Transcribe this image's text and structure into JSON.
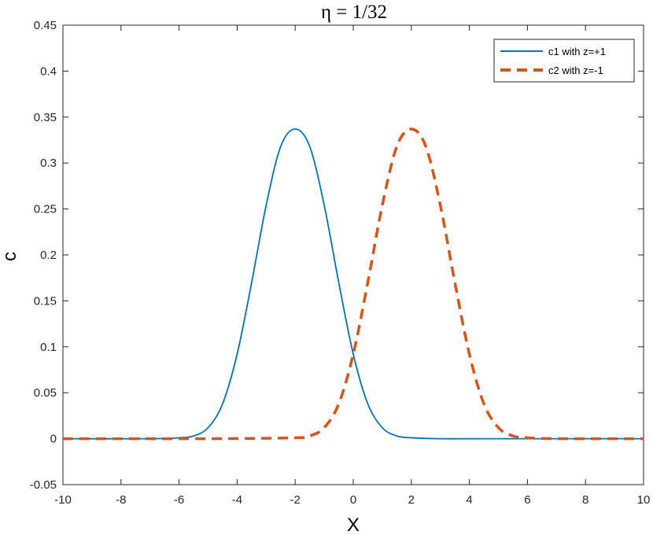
{
  "chart_data": {
    "type": "line",
    "title": "η = 1/32",
    "xlabel": "X",
    "ylabel": "c",
    "xlim": [
      -10,
      10
    ],
    "ylim": [
      -0.05,
      0.45
    ],
    "xticks": [
      -10,
      -8,
      -6,
      -4,
      -2,
      0,
      2,
      4,
      6,
      8,
      10
    ],
    "xtick_labels": [
      "-10",
      "-8",
      "-6",
      "-4",
      "-2",
      "0",
      "2",
      "4",
      "6",
      "8",
      "10"
    ],
    "yticks": [
      -0.05,
      0,
      0.05,
      0.1,
      0.15,
      0.2,
      0.25,
      0.3,
      0.35,
      0.4,
      0.45
    ],
    "ytick_labels": [
      "-0.05",
      "0",
      "0.05",
      "0.1",
      "0.15",
      "0.2",
      "0.25",
      "0.3",
      "0.35",
      "0.4",
      "0.45"
    ],
    "grid": false,
    "legend_position": "top-right",
    "series": [
      {
        "name": "c1 with z=+1",
        "color": "#0072BD",
        "style": "solid",
        "x": [
          -10,
          -7,
          -6,
          -5.5,
          -5,
          -4.5,
          -4,
          -3.5,
          -3,
          -2.5,
          -2,
          -1.5,
          -1,
          -0.5,
          0,
          0.5,
          1,
          1.5,
          2,
          3,
          5,
          10
        ],
        "y": [
          0,
          0,
          0.001,
          0.003,
          0.012,
          0.038,
          0.092,
          0.17,
          0.254,
          0.318,
          0.337,
          0.318,
          0.254,
          0.17,
          0.092,
          0.038,
          0.012,
          0.003,
          0.001,
          0,
          0,
          0
        ]
      },
      {
        "name": "c2 with z=-1",
        "color": "#D95319",
        "style": "dashed",
        "x": [
          -10,
          -5,
          -2,
          -1.5,
          -1,
          -0.5,
          0,
          0.5,
          1,
          1.5,
          2,
          2.5,
          3,
          3.5,
          4,
          4.5,
          5,
          5.5,
          6,
          7,
          10
        ],
        "y": [
          0,
          0,
          0.001,
          0.003,
          0.012,
          0.038,
          0.092,
          0.17,
          0.254,
          0.318,
          0.337,
          0.318,
          0.254,
          0.17,
          0.092,
          0.038,
          0.012,
          0.003,
          0.001,
          0,
          0
        ]
      }
    ]
  }
}
